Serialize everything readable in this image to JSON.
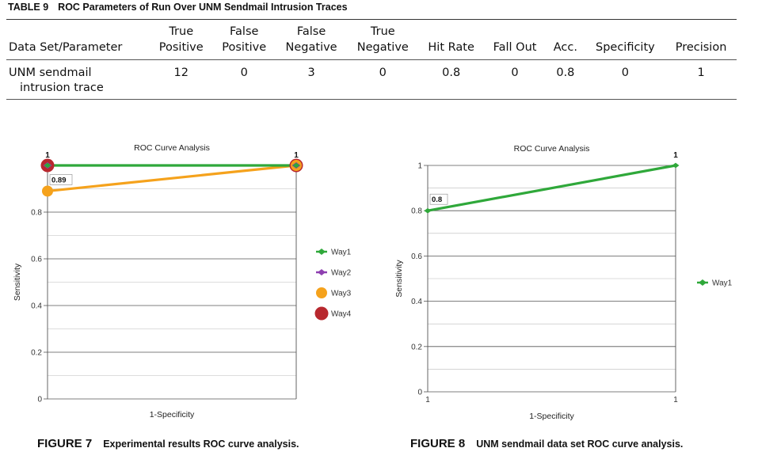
{
  "table": {
    "label": "TABLE 9",
    "title": "ROC Parameters of Run Over UNM Sendmail Intrusion Traces",
    "headers": [
      [
        "",
        "Data Set/Parameter"
      ],
      [
        "True",
        "Positive"
      ],
      [
        "False",
        "Positive"
      ],
      [
        "False",
        "Negative"
      ],
      [
        "True",
        "Negative"
      ],
      [
        "",
        "Hit Rate"
      ],
      [
        "",
        "Fall Out"
      ],
      [
        "",
        "Acc."
      ],
      [
        "",
        "Specificity"
      ],
      [
        "",
        "Precision"
      ]
    ],
    "row": {
      "name_line1": "UNM sendmail",
      "name_line2": "intrusion trace",
      "values": [
        "12",
        "0",
        "3",
        "0",
        "0.8",
        "0",
        "0.8",
        "0",
        "1"
      ]
    }
  },
  "figure7": {
    "label": "FIGURE 7",
    "caption": "Experimental results ROC curve analysis."
  },
  "figure8": {
    "label": "FIGURE 8",
    "caption": "UNM sendmail data set ROC curve analysis."
  },
  "chart_data": [
    {
      "type": "line",
      "title": "ROC Curve Analysis",
      "xlabel": "1-Specificity",
      "ylabel": "Sensitivity",
      "ylim": [
        0,
        1
      ],
      "y_ticks": [
        "0",
        "0.2",
        "0.4",
        "0.6",
        "0.8"
      ],
      "grid": true,
      "legend": "right",
      "series": [
        {
          "name": "Way1",
          "color": "#2fa83a",
          "marker": "diamond",
          "points": [
            [
              0,
              1
            ],
            [
              1,
              1
            ]
          ],
          "labels": [
            "1",
            "1"
          ]
        },
        {
          "name": "Way2",
          "color": "#8e3fb0",
          "marker": "diamond",
          "points": [
            [
              0,
              1
            ],
            [
              1,
              1
            ]
          ],
          "labels": [
            "",
            ""
          ]
        },
        {
          "name": "Way3",
          "color": "#f5a21c",
          "marker": "circle",
          "points": [
            [
              0,
              0.89
            ],
            [
              1,
              1
            ]
          ],
          "labels": [
            "0.89",
            ""
          ]
        },
        {
          "name": "Way4",
          "color": "#b8282e",
          "marker": "circle",
          "points": [
            [
              0,
              1
            ],
            [
              1,
              1
            ]
          ],
          "labels": [
            "",
            ""
          ]
        }
      ]
    },
    {
      "type": "line",
      "title": "ROC Curve Analysis",
      "xlabel": "1-Specificity",
      "ylabel": "Sensitivity",
      "ylim": [
        0,
        1
      ],
      "y_ticks": [
        "0",
        "0.2",
        "0.4",
        "0.6",
        "0.8",
        "1"
      ],
      "x_ticks": [
        "1",
        "1"
      ],
      "grid": true,
      "legend": "right",
      "series": [
        {
          "name": "Way1",
          "color": "#2fa83a",
          "marker": "diamond",
          "points": [
            [
              0,
              0.8
            ],
            [
              1,
              1
            ]
          ],
          "labels": [
            "0.8",
            "1"
          ]
        }
      ]
    }
  ]
}
